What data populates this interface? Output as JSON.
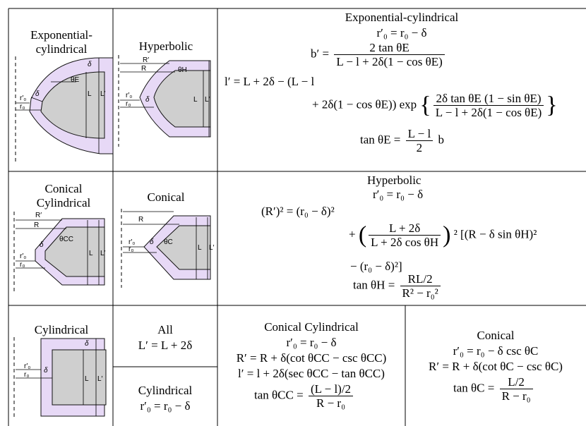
{
  "titles": {
    "exp_cyl": "Exponential-cylindrical",
    "hyperbolic": "Hyperbolic",
    "conical_cyl": "Conical Cylindrical",
    "conical": "Conical",
    "cylindrical": "Cylindrical"
  },
  "diagram_labels": {
    "r0": "r₀",
    "r0p": "r′₀",
    "delta": "δ",
    "L": "L",
    "Lp": "L′",
    "R": "R",
    "Rp": "R′",
    "thetaE": "θE",
    "thetaH": "θH",
    "thetaCC": "θCC",
    "thetaC": "θC"
  },
  "eq_exp": {
    "title": "Exponential-cylindrical",
    "r0": "r′₀ = r₀ − δ",
    "bp_lhs": "b′ =",
    "bp_num": "2 tan θE",
    "bp_den": "L − l + 2δ(1 − cos θE)",
    "lp_line1": "l′ = L + 2δ − (L − l",
    "lp_line2_a": "+ 2δ(1 − cos θE)) exp",
    "lp_line2_num": "2δ tan θE (1 − sin θE)",
    "lp_line2_den": "L − l + 2δ(1 − cos θE)",
    "tan_lhs": "tan θE =",
    "tan_num": "L − l",
    "tan_den": "2",
    "tan_rhs": "b"
  },
  "eq_hyp": {
    "title": "Hyperbolic",
    "r0": "r′₀ = r₀ − δ",
    "line1": "(R′)² = (r₀ − δ)²",
    "line2_a": "+",
    "line2_num": "L + 2δ",
    "line2_den": "L + 2δ cos θH",
    "line2_b": "² [(R − δ sin θH)²",
    "line3": "− (r₀ − δ)²]",
    "tan_lhs": "tan θH =",
    "tan_num": "RL/2",
    "tan_den": "R² − r₀²"
  },
  "eq_all": {
    "title": "All",
    "eq": "L′ = L + 2δ"
  },
  "eq_cyl": {
    "title": "Cylindrical",
    "eq": "r′₀ = r₀ − δ"
  },
  "eq_cc": {
    "title": "Conical Cylindrical",
    "l1": "r′₀ = r₀ − δ",
    "l2": "R′ = R + δ(cot θCC − csc θCC)",
    "l3": "l′ = l + 2δ(sec θCC − tan θCC)",
    "tan_lhs": "tan θCC =",
    "tan_num": "(L − l)/2",
    "tan_den": "R − r₀"
  },
  "eq_c": {
    "title": "Conical",
    "l1": "r′₀ = r₀ − δ csc θC",
    "l2": "R′ = R + δ(cot θC − csc θC)",
    "tan_lhs": "tan θC =",
    "tan_num": "L/2",
    "tan_den": "R − r₀"
  },
  "colors": {
    "shell": "#e7d9f6",
    "core": "#cfcfcf",
    "border": "#000000"
  }
}
